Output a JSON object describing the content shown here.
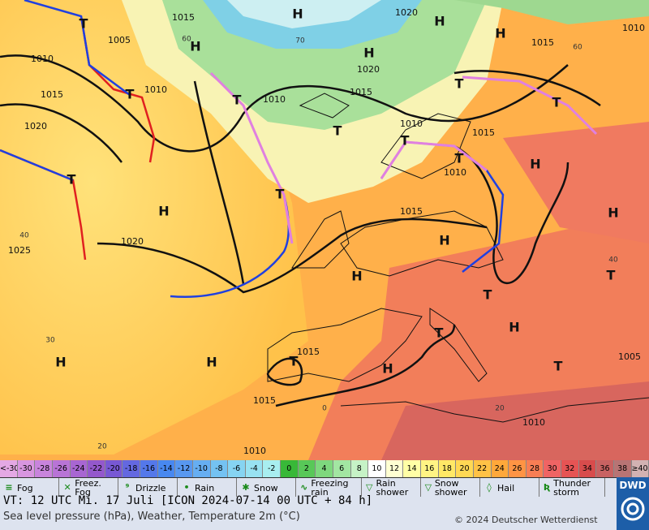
{
  "map": {
    "pressure_labels": [
      "1015",
      "1005",
      "1010",
      "1015",
      "1010",
      "1020",
      "1010",
      "1020",
      "1015",
      "1010",
      "1020",
      "1015",
      "1010",
      "1015",
      "1010",
      "1015",
      "1020",
      "1025",
      "1015",
      "1015",
      "1010",
      "1010",
      "1005"
    ],
    "high_labels": [
      "H",
      "H",
      "H",
      "H",
      "H",
      "H",
      "H",
      "H",
      "H",
      "H",
      "H",
      "H",
      "H",
      "H"
    ],
    "low_labels": [
      "T",
      "T",
      "T",
      "T",
      "T",
      "T",
      "T",
      "T",
      "T",
      "T",
      "T",
      "T",
      "T",
      "T",
      "T"
    ],
    "temperature_labels": [
      "60",
      "70",
      "60",
      "40",
      "40",
      "30",
      "20",
      "20",
      "0"
    ]
  },
  "legend": {
    "scale_labels": [
      "<-30",
      "-30",
      "-28",
      "-26",
      "-24",
      "-22",
      "-20",
      "-18",
      "-16",
      "-14",
      "-12",
      "-10",
      "-8",
      "-6",
      "-4",
      "-2",
      "0",
      "2",
      "4",
      "6",
      "8",
      "10",
      "12",
      "14",
      "16",
      "18",
      "20",
      "22",
      "24",
      "26",
      "28",
      "30",
      "32",
      "34",
      "36",
      "38",
      "≥40 °C"
    ],
    "scale_colors": [
      "#e4a8e4",
      "#d896e0",
      "#c884dc",
      "#b874d6",
      "#a866d2",
      "#9458cc",
      "#7858d4",
      "#6468e0",
      "#5478ea",
      "#4888f0",
      "#5898f0",
      "#66aef2",
      "#74c2f2",
      "#86d4f2",
      "#98e2f2",
      "#a8eef0",
      "#38b838",
      "#58c858",
      "#7ed87e",
      "#a2e6a2",
      "#c6f2c6",
      "#ffffff",
      "#ffffd2",
      "#ffffa6",
      "#fff484",
      "#ffe866",
      "#ffd854",
      "#ffc246",
      "#ffa83a",
      "#ff9444",
      "#f87e54",
      "#f06464",
      "#e65454",
      "#d84c4c",
      "#c86262",
      "#b87474",
      "#d2b2b2"
    ],
    "weather_items": [
      "Fog",
      "Freez. Fog",
      "Drizzle",
      "Rain",
      "Snow",
      "Freezing rain",
      "Rain shower",
      "Snow shower",
      "Hail",
      "Thunder storm"
    ]
  },
  "footer": {
    "valid_time": "VT: 12 UTC Mi.   17 Juli [ICON 2024-07-14  00 UTC + 84 h]",
    "description": "Sea level pressure (hPa), Weather, Temperature 2m (°C)",
    "copyright": "© 2024 Deutscher Wetterdienst",
    "logo": "DWD"
  }
}
